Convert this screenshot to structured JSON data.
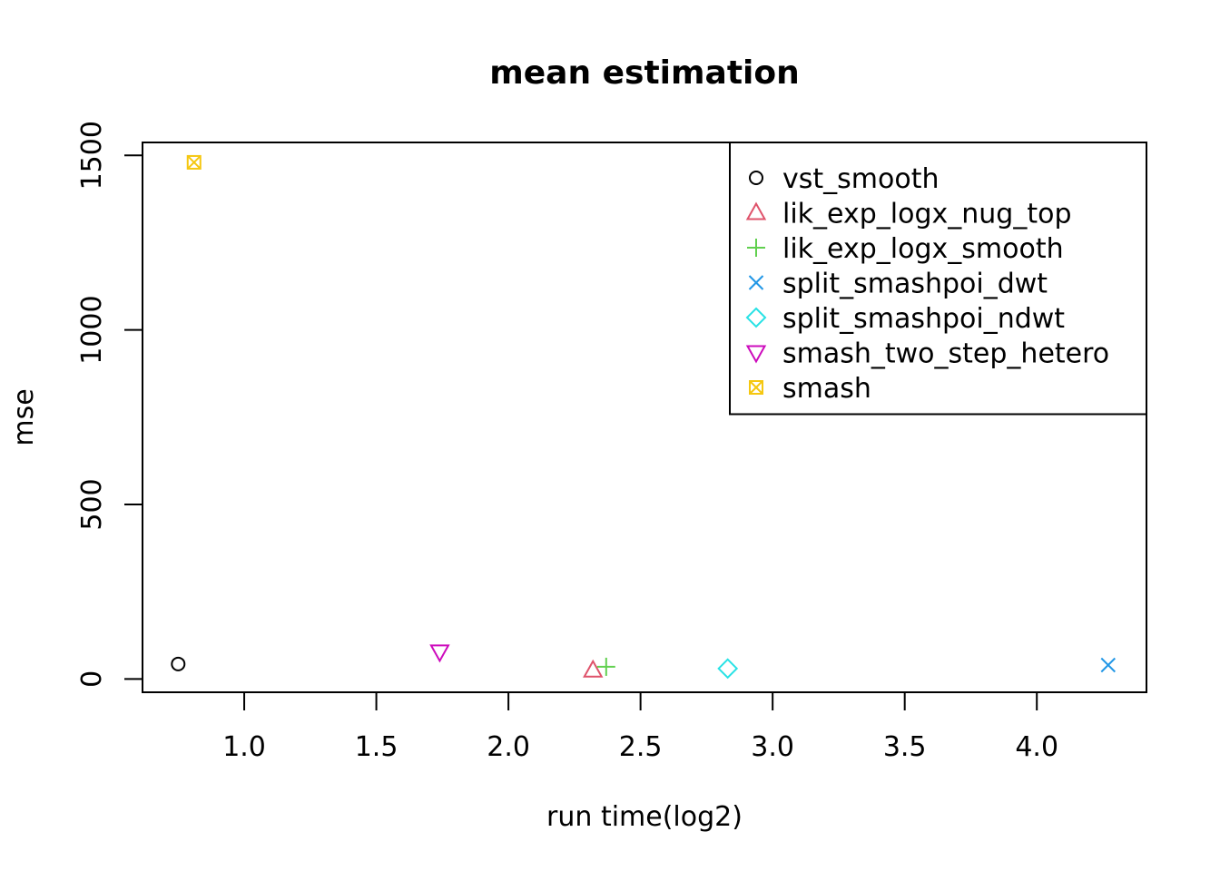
{
  "chart_data": {
    "type": "scatter",
    "title": "mean estimation",
    "xlabel": "run time(log2)",
    "ylabel": "mse",
    "xlim": [
      0.615,
      4.415
    ],
    "ylim": [
      -38,
      1537
    ],
    "xticks": [
      1.0,
      1.5,
      2.0,
      2.5,
      3.0,
      3.5,
      4.0
    ],
    "xtick_labels": [
      "1.0",
      "1.5",
      "2.0",
      "2.5",
      "3.0",
      "3.5",
      "4.0"
    ],
    "yticks": [
      0,
      500,
      1000,
      1500
    ],
    "ytick_labels": [
      "0",
      "500",
      "1000",
      "1500"
    ],
    "grid": false,
    "legend_position": "top-right",
    "series": [
      {
        "name": "vst_smooth",
        "marker": "circle",
        "color": "#000000",
        "x": [
          0.75
        ],
        "y": [
          43
        ]
      },
      {
        "name": "lik_exp_logx_nug_top",
        "marker": "triangle-up",
        "color": "#DF536B",
        "x": [
          2.32
        ],
        "y": [
          25
        ]
      },
      {
        "name": "lik_exp_logx_smooth",
        "marker": "plus",
        "color": "#61D04F",
        "x": [
          2.37
        ],
        "y": [
          35
        ]
      },
      {
        "name": "split_smashpoi_dwt",
        "marker": "x",
        "color": "#2297E6",
        "x": [
          4.27
        ],
        "y": [
          40
        ]
      },
      {
        "name": "split_smashpoi_ndwt",
        "marker": "diamond",
        "color": "#28E2E5",
        "x": [
          2.83
        ],
        "y": [
          30
        ]
      },
      {
        "name": "smash_two_step_hetero",
        "marker": "triangle-down",
        "color": "#CD0BBC",
        "x": [
          1.74
        ],
        "y": [
          78
        ]
      },
      {
        "name": "smash",
        "marker": "square-x",
        "color": "#F5C710",
        "x": [
          0.81
        ],
        "y": [
          1480
        ]
      }
    ]
  }
}
